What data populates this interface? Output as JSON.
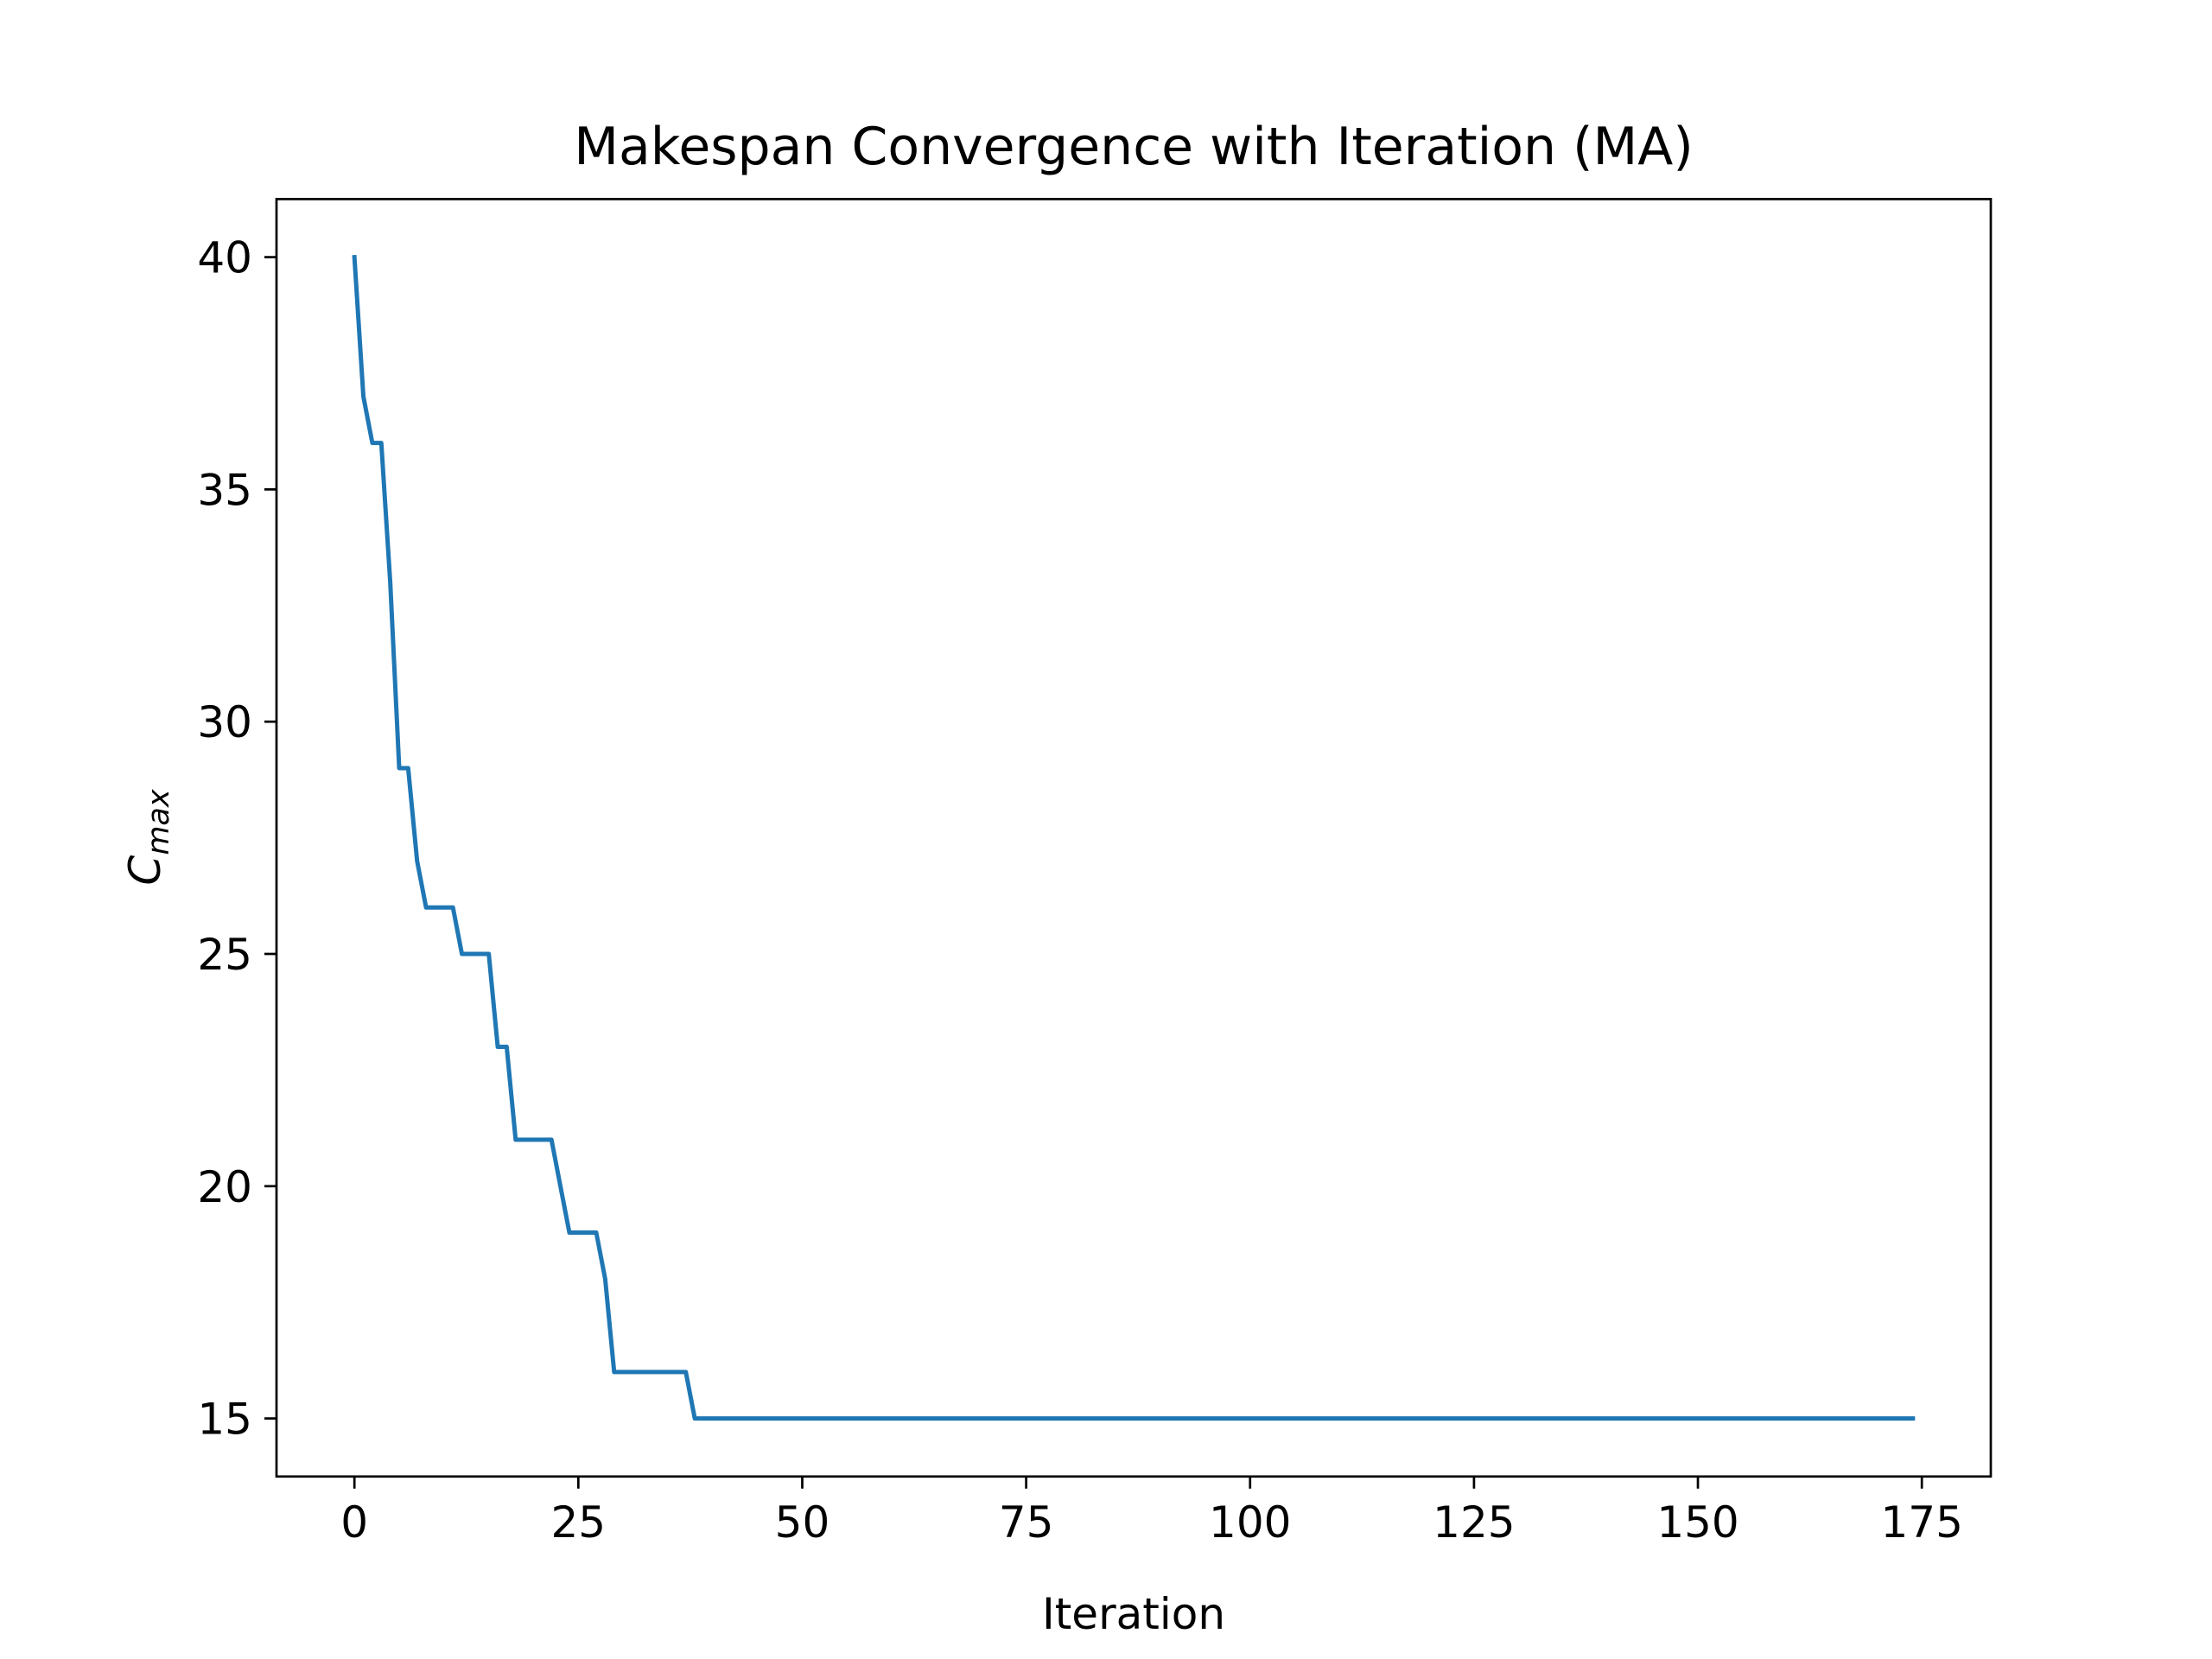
{
  "chart_data": {
    "type": "line",
    "title": "Makespan Convergence with Iteration (MA)",
    "xlabel": "Iteration",
    "ylabel": {
      "main": "C",
      "subscript": "max"
    },
    "xlim": [
      -8.7,
      182.7
    ],
    "ylim": [
      13.75,
      41.25
    ],
    "xticks": [
      0,
      25,
      50,
      75,
      100,
      125,
      150,
      175
    ],
    "yticks": [
      15,
      20,
      25,
      30,
      35,
      40
    ],
    "grid": false,
    "series": [
      {
        "color": "#1f77b4",
        "x": [
          0,
          1,
          2,
          3,
          4,
          5,
          6,
          7,
          8,
          9,
          10,
          11,
          12,
          13,
          14,
          15,
          16,
          17,
          18,
          19,
          20,
          21,
          22,
          23,
          24,
          25,
          26,
          27,
          28,
          29,
          30,
          31,
          32,
          33,
          34,
          35,
          36,
          37,
          38,
          174
        ],
        "y": [
          40,
          37,
          36,
          36,
          33,
          29,
          29,
          27,
          26,
          26,
          26,
          26,
          25,
          25,
          25,
          25,
          23,
          23,
          21,
          21,
          21,
          21,
          21,
          20,
          19,
          19,
          19,
          19,
          18,
          16,
          16,
          16,
          16,
          16,
          16,
          16,
          16,
          16,
          15,
          15
        ]
      }
    ]
  }
}
